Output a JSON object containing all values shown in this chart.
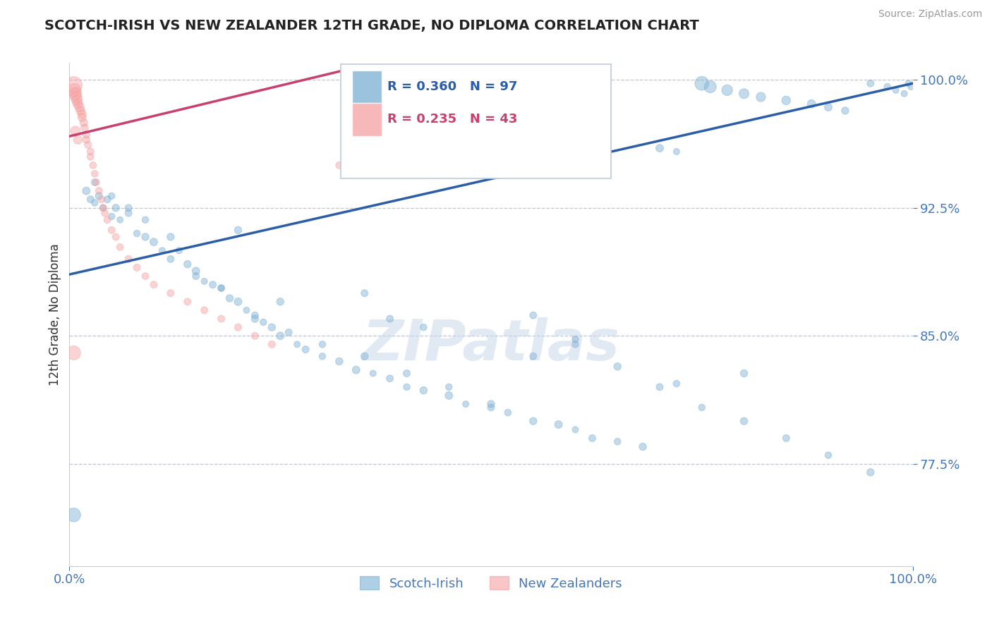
{
  "title": "SCOTCH-IRISH VS NEW ZEALANDER 12TH GRADE, NO DIPLOMA CORRELATION CHART",
  "source_text": "Source: ZipAtlas.com",
  "ylabel": "12th Grade, No Diploma",
  "watermark": "ZIPatlas",
  "legend_blue_label": "Scotch-Irish",
  "legend_pink_label": "New Zealanders",
  "R_blue": 0.36,
  "N_blue": 97,
  "R_pink": 0.235,
  "N_pink": 43,
  "xlim": [
    0.0,
    1.0
  ],
  "ylim": [
    0.715,
    1.01
  ],
  "yticks": [
    0.775,
    0.85,
    0.925,
    1.0
  ],
  "ytick_labels": [
    "77.5%",
    "85.0%",
    "92.5%",
    "100.0%"
  ],
  "xtick_labels": [
    "0.0%",
    "100.0%"
  ],
  "xticks": [
    0.0,
    1.0
  ],
  "blue_color": "#7BAFD4",
  "pink_color": "#F4A0A0",
  "blue_line_color": "#2B5EA7",
  "pink_line_color": "#C94070",
  "title_color": "#222222",
  "axis_label_color": "#333333",
  "tick_color": "#4477BB",
  "grid_color": "#B0B8D0",
  "watermark_color": "#C5D5E8",
  "blue_scatter_x": [
    0.005,
    0.02,
    0.025,
    0.03,
    0.035,
    0.04,
    0.045,
    0.05,
    0.055,
    0.06,
    0.07,
    0.08,
    0.09,
    0.1,
    0.11,
    0.12,
    0.13,
    0.14,
    0.15,
    0.16,
    0.17,
    0.18,
    0.19,
    0.2,
    0.21,
    0.22,
    0.23,
    0.24,
    0.25,
    0.27,
    0.28,
    0.3,
    0.32,
    0.34,
    0.36,
    0.38,
    0.4,
    0.42,
    0.45,
    0.47,
    0.5,
    0.52,
    0.55,
    0.58,
    0.6,
    0.62,
    0.65,
    0.68,
    0.7,
    0.72,
    0.75,
    0.76,
    0.78,
    0.8,
    0.82,
    0.85,
    0.88,
    0.9,
    0.92,
    0.95,
    0.97,
    0.98,
    0.99,
    0.995,
    0.998,
    0.03,
    0.05,
    0.07,
    0.09,
    0.12,
    0.15,
    0.18,
    0.22,
    0.26,
    0.3,
    0.35,
    0.4,
    0.45,
    0.5,
    0.55,
    0.6,
    0.65,
    0.7,
    0.75,
    0.8,
    0.85,
    0.9,
    0.95,
    0.38,
    0.42,
    0.25,
    0.55,
    0.72,
    0.2,
    0.35,
    0.6,
    0.8
  ],
  "blue_scatter_y": [
    0.745,
    0.935,
    0.93,
    0.928,
    0.932,
    0.925,
    0.93,
    0.92,
    0.925,
    0.918,
    0.922,
    0.91,
    0.908,
    0.905,
    0.9,
    0.895,
    0.9,
    0.892,
    0.888,
    0.882,
    0.88,
    0.878,
    0.872,
    0.87,
    0.865,
    0.862,
    0.858,
    0.855,
    0.85,
    0.845,
    0.842,
    0.838,
    0.835,
    0.83,
    0.828,
    0.825,
    0.82,
    0.818,
    0.815,
    0.81,
    0.808,
    0.805,
    0.8,
    0.798,
    0.795,
    0.79,
    0.788,
    0.785,
    0.96,
    0.958,
    0.998,
    0.996,
    0.994,
    0.992,
    0.99,
    0.988,
    0.986,
    0.984,
    0.982,
    0.998,
    0.996,
    0.994,
    0.992,
    0.998,
    0.996,
    0.94,
    0.932,
    0.925,
    0.918,
    0.908,
    0.885,
    0.878,
    0.86,
    0.852,
    0.845,
    0.838,
    0.828,
    0.82,
    0.81,
    0.862,
    0.845,
    0.832,
    0.82,
    0.808,
    0.8,
    0.79,
    0.78,
    0.77,
    0.86,
    0.855,
    0.87,
    0.838,
    0.822,
    0.912,
    0.875,
    0.848,
    0.828
  ],
  "blue_scatter_size": [
    200,
    60,
    50,
    45,
    55,
    45,
    50,
    45,
    55,
    40,
    50,
    45,
    55,
    60,
    40,
    50,
    45,
    55,
    60,
    40,
    50,
    45,
    55,
    60,
    40,
    50,
    45,
    55,
    60,
    40,
    50,
    45,
    55,
    60,
    40,
    50,
    45,
    55,
    60,
    40,
    50,
    45,
    55,
    60,
    40,
    50,
    45,
    55,
    60,
    40,
    200,
    150,
    120,
    100,
    90,
    80,
    70,
    60,
    55,
    50,
    45,
    40,
    40,
    40,
    40,
    50,
    45,
    50,
    45,
    55,
    50,
    45,
    55,
    50,
    45,
    55,
    50,
    45,
    55,
    50,
    45,
    55,
    50,
    45,
    55,
    50,
    45,
    55,
    50,
    45,
    55,
    50,
    45,
    55,
    50,
    45,
    55
  ],
  "pink_scatter_x": [
    0.005,
    0.006,
    0.007,
    0.008,
    0.009,
    0.01,
    0.012,
    0.013,
    0.015,
    0.015,
    0.017,
    0.018,
    0.02,
    0.02,
    0.022,
    0.025,
    0.025,
    0.028,
    0.03,
    0.032,
    0.035,
    0.038,
    0.04,
    0.042,
    0.045,
    0.05,
    0.055,
    0.06,
    0.07,
    0.08,
    0.09,
    0.1,
    0.12,
    0.14,
    0.16,
    0.18,
    0.2,
    0.22,
    0.24,
    0.007,
    0.01,
    0.005,
    0.32
  ],
  "pink_scatter_y": [
    0.997,
    0.994,
    0.992,
    0.99,
    0.988,
    0.986,
    0.984,
    0.982,
    0.98,
    0.978,
    0.975,
    0.972,
    0.968,
    0.965,
    0.962,
    0.958,
    0.955,
    0.95,
    0.945,
    0.94,
    0.935,
    0.93,
    0.925,
    0.922,
    0.918,
    0.912,
    0.908,
    0.902,
    0.895,
    0.89,
    0.885,
    0.88,
    0.875,
    0.87,
    0.865,
    0.86,
    0.855,
    0.85,
    0.845,
    0.97,
    0.965,
    0.84,
    0.95
  ],
  "pink_scatter_size": [
    300,
    180,
    160,
    140,
    120,
    100,
    90,
    80,
    75,
    70,
    65,
    60,
    58,
    55,
    53,
    50,
    50,
    48,
    47,
    46,
    50,
    48,
    50,
    48,
    50,
    50,
    48,
    47,
    50,
    50,
    48,
    50,
    50,
    50,
    50,
    50,
    50,
    50,
    50,
    100,
    80,
    200,
    50
  ],
  "blue_trend_x": [
    0.0,
    1.0
  ],
  "blue_trend_y": [
    0.886,
    0.998
  ],
  "pink_trend_x": [
    0.0,
    0.32
  ],
  "pink_trend_y": [
    0.967,
    1.005
  ]
}
